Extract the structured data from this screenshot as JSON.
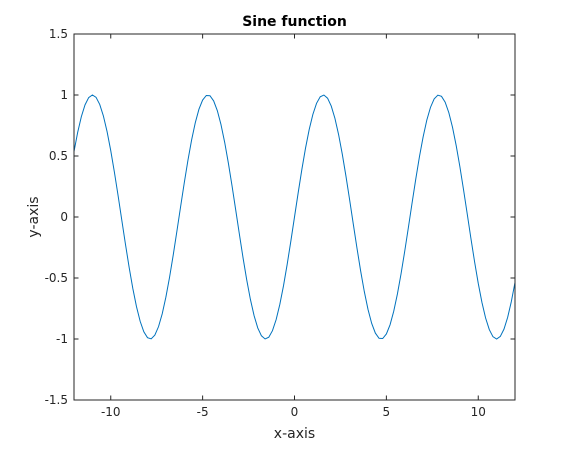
{
  "chart_data": {
    "type": "line",
    "title": "Sine function",
    "xlabel": "x-axis",
    "ylabel": "y-axis",
    "xlim": [
      -12,
      12
    ],
    "ylim": [
      -1.5,
      1.5
    ],
    "x_ticks": [
      -10,
      -5,
      0,
      5,
      10
    ],
    "x_tick_labels": [
      "-10",
      "-5",
      "0",
      "5",
      "10"
    ],
    "y_ticks": [
      -1.5,
      -1,
      -0.5,
      0,
      0.5,
      1,
      1.5
    ],
    "y_tick_labels": [
      "-1.5",
      "-1",
      "-0.5",
      "0",
      "0.5",
      "1",
      "1.5"
    ],
    "grid": false,
    "box": true,
    "colors": {
      "line": "#0072bd",
      "axes": "#262626"
    },
    "series": [
      {
        "function": "sin(x)",
        "x_start": -12,
        "x_end": 12,
        "x_step": 0.2
      }
    ]
  }
}
